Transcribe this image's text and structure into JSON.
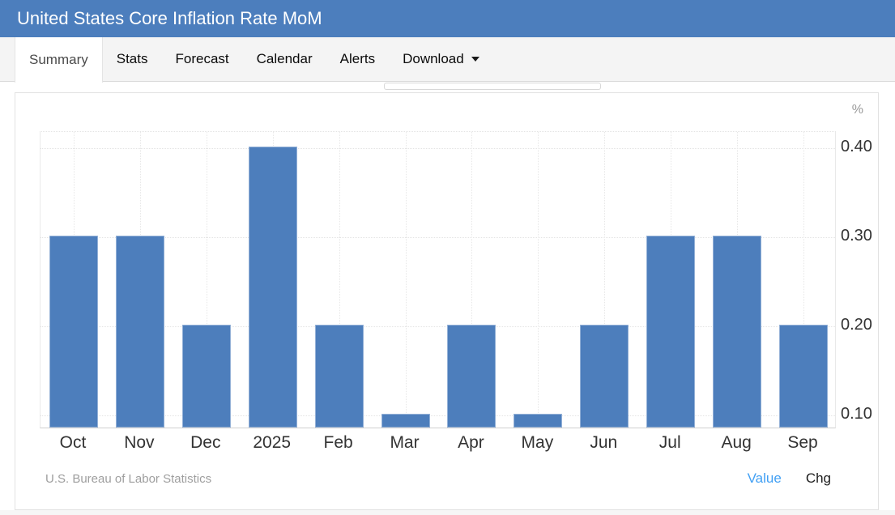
{
  "header": {
    "title": "United States Core Inflation Rate MoM"
  },
  "tabs": {
    "items": [
      {
        "label": "Summary",
        "active": true,
        "has_caret": false
      },
      {
        "label": "Stats",
        "active": false,
        "has_caret": false
      },
      {
        "label": "Forecast",
        "active": false,
        "has_caret": false
      },
      {
        "label": "Calendar",
        "active": false,
        "has_caret": false
      },
      {
        "label": "Alerts",
        "active": false,
        "has_caret": false
      },
      {
        "label": "Download",
        "active": false,
        "has_caret": true
      }
    ]
  },
  "chart_data": {
    "type": "bar",
    "title": "United States Core Inflation Rate MoM",
    "categories": [
      "Oct",
      "Nov",
      "Dec",
      "2025",
      "Feb",
      "Mar",
      "Apr",
      "May",
      "Jun",
      "Jul",
      "Aug",
      "Sep"
    ],
    "values": [
      0.3,
      0.3,
      0.2,
      0.4,
      0.2,
      0.1,
      0.2,
      0.1,
      0.2,
      0.3,
      0.3,
      0.2
    ],
    "unit": "%",
    "y_ticks": [
      {
        "value": 0.1,
        "label": "0.10"
      },
      {
        "value": 0.2,
        "label": "0.20"
      },
      {
        "value": 0.3,
        "label": "0.30"
      },
      {
        "value": 0.4,
        "label": "0.40"
      }
    ],
    "ylim": [
      0.085,
      0.418
    ],
    "grid": "dotted",
    "legend": "none",
    "bar_color": "#4d7ebc"
  },
  "footer": {
    "source": "U.S. Bureau of Labor Statistics",
    "views": [
      {
        "label": "Value",
        "active": true
      },
      {
        "label": "Chg",
        "active": false
      }
    ]
  },
  "colors": {
    "header_bg": "#4c7ebd",
    "tabbar_bg": "#f4f4f4",
    "link_active": "#42a0f4",
    "bar": "#4d7ebc"
  }
}
